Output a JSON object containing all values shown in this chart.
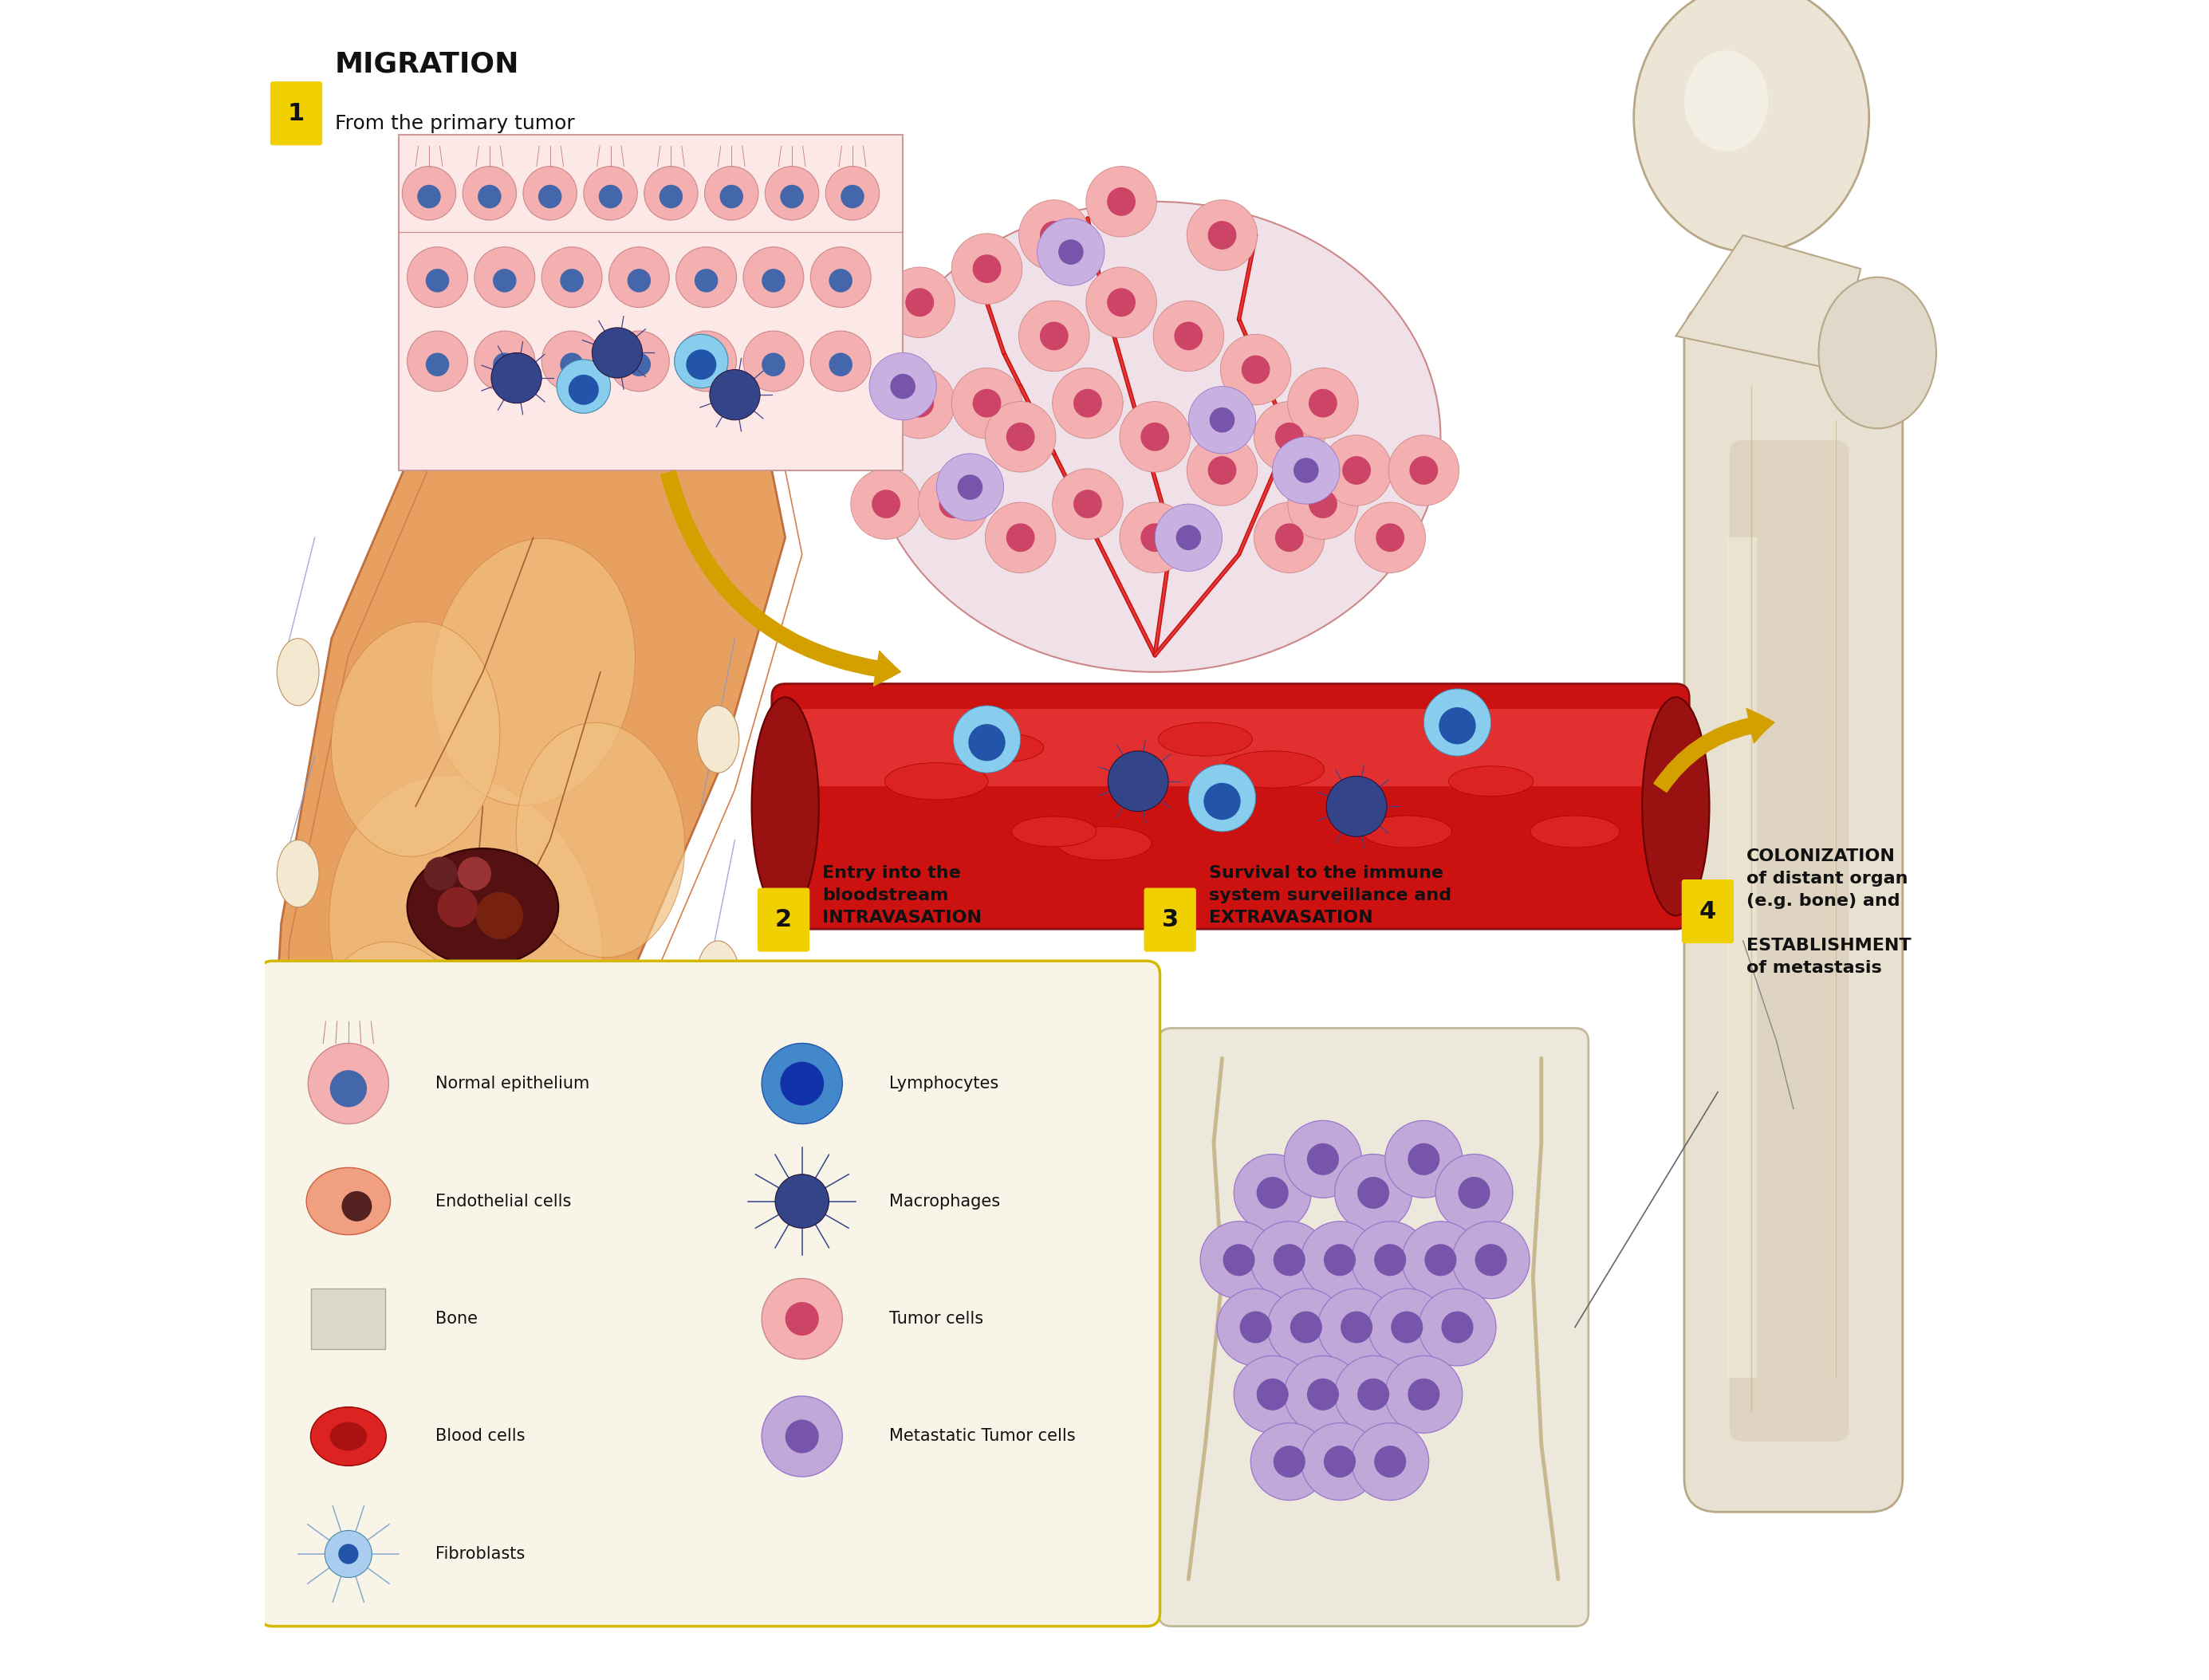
{
  "bg_color": "#ffffff",
  "fig_width": 27.7,
  "fig_height": 21.07,
  "labels": {
    "step1_title": "MIGRATION",
    "step1_sub": "From the primary tumor",
    "step2_title": "Entry into the\nbloodstream\nINTRAVASATION",
    "step3_title": "Survival to the immune\nsystem surveillance and\nEXTRAVASATION",
    "step4_title": "COLONIZATION\nof distant organ\n(e.g. bone) and\n\nESTABLISHMENT\nof metastasis"
  },
  "legend_items_left": [
    "Normal epithelium",
    "Endothelial cells",
    "Bone",
    "Blood cells",
    "Fibroblasts"
  ],
  "legend_items_right": [
    "Lymphocytes",
    "Macrophages",
    "Tumor cells",
    "Metastatic Tumor cells"
  ],
  "step_badge_color": "#f0d000",
  "legend_box_edge": "#d4b800",
  "vessel_color": "#cc1111",
  "vessel_dark": "#881111",
  "vessel_light": "#ff5555",
  "text_color": "#111111",
  "arrow_color": "#d4a000",
  "bone_color": "#e8e0d0",
  "skin_color": "#e8a060",
  "legend_bg": "#f8f5e8"
}
